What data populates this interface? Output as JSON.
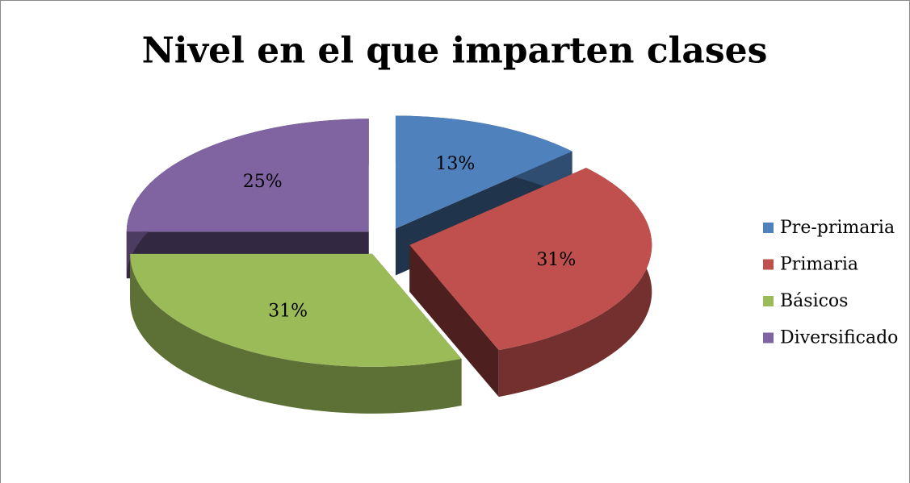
{
  "chart_data": {
    "type": "pie",
    "title": "Nivel en el que imparten clases",
    "categories": [
      "Pre-primaria",
      "Primaria",
      "Básicos",
      "Diversificado"
    ],
    "values": [
      13,
      31,
      31,
      25
    ],
    "value_labels": [
      "13%",
      "31%",
      "31%",
      "25%"
    ],
    "colors": [
      "#4f81bd",
      "#c0504d",
      "#9bbb59",
      "#8064a2"
    ],
    "legend": "right"
  }
}
